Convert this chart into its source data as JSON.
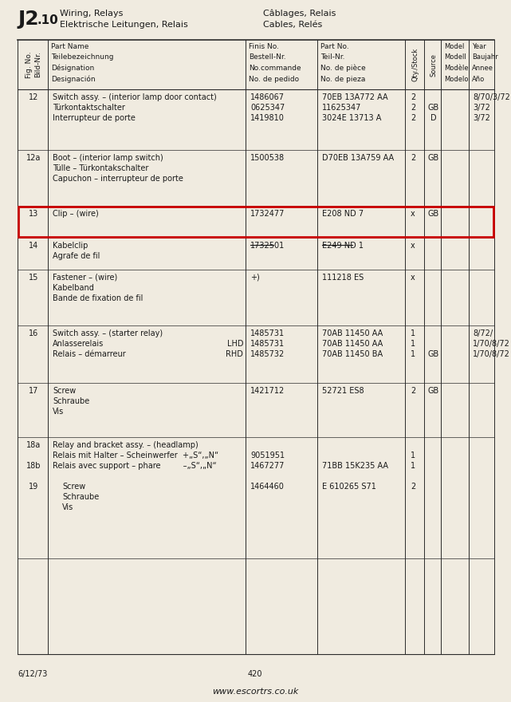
{
  "title_ref_j": "J2",
  "title_ref_dot": ".",
  "title_ref_10": "10",
  "title_line1": "Wiring, Relays",
  "title_line2": "Elektrische Leitungen, Relais",
  "title_fr1": "Câblages, Relais",
  "title_fr2": "Cables, Relés",
  "header_fig": [
    "Fig. No.",
    "Bild-Nr."
  ],
  "header_name": [
    "Part Name",
    "Teilebezeichnung",
    "Désignation",
    "Designación"
  ],
  "header_finis": [
    "Finis No.",
    "Bestell-Nr.",
    "No.commande",
    "No. de pedido"
  ],
  "header_part": [
    "Part No.",
    "Teil-Nr.",
    "No. de pièce",
    "No. de pieza"
  ],
  "header_qty": "Qty./Stock",
  "header_source": "Source",
  "header_model": [
    "Model",
    "Modell",
    "Modèle",
    "Modelo"
  ],
  "header_year": [
    "Year",
    "Baujahr",
    "Annee",
    "Año"
  ],
  "rows": [
    {
      "fig": "12",
      "name": [
        "Switch assy. – (interior lamp door contact)",
        "Türkontaktschalter",
        "Interrupteur de porte"
      ],
      "finis": [
        "1486067",
        "0625347",
        "1419810"
      ],
      "part": [
        "70EB 13A772 AA",
        "11625347",
        "3024E 13713 A"
      ],
      "qty": [
        "2",
        "2",
        "2"
      ],
      "source": [
        "",
        "GB",
        "D"
      ],
      "model": "",
      "year": [
        "8/70/3/72",
        "3/72",
        "3/72"
      ],
      "lhd_rhd": [],
      "highlight": false,
      "strikethrough": false
    },
    {
      "fig": "12a",
      "name": [
        "Boot – (interior lamp switch)",
        "Tülle – Türkontakschalter",
        "Capuchon – interrupteur de porte"
      ],
      "finis": [
        "1500538"
      ],
      "part": [
        "D70EB 13A759 AA"
      ],
      "qty": [
        "2"
      ],
      "source": [
        "GB"
      ],
      "model": "",
      "year": [],
      "lhd_rhd": [],
      "highlight": false,
      "strikethrough": false
    },
    {
      "fig": "13",
      "name": [
        "Clip – (wire)"
      ],
      "finis": [
        "1732477"
      ],
      "part": [
        "E208 ND 7"
      ],
      "qty": [
        "x"
      ],
      "source": [
        "GB"
      ],
      "model": "",
      "year": [],
      "lhd_rhd": [],
      "highlight": true,
      "strikethrough": false
    },
    {
      "fig": "14",
      "name": [
        "Kabelclip",
        "Agrafe de fil"
      ],
      "finis": [
        "1732501"
      ],
      "part": [
        "E249 ND 1"
      ],
      "qty": [
        "x"
      ],
      "source": [],
      "model": "",
      "year": [],
      "lhd_rhd": [],
      "highlight": false,
      "strikethrough": true
    },
    {
      "fig": "15",
      "name": [
        "Fastener – (wire)",
        "Kabelband",
        "Bande de fixation de fil"
      ],
      "finis": [
        "+)"
      ],
      "part": [
        "111218 ES"
      ],
      "qty": [
        "x"
      ],
      "source": [],
      "model": "",
      "year": [],
      "lhd_rhd": [],
      "highlight": false,
      "strikethrough": false
    },
    {
      "fig": "16",
      "name": [
        "Switch assy. – (starter relay)",
        "Anlasserelais",
        "Relais – démarreur"
      ],
      "finis": [
        "1485731",
        "1485731",
        "1485732"
      ],
      "part": [
        "70AB 11450 AA",
        "70AB 11450 AA",
        "70AB 11450 BA"
      ],
      "qty": [
        "1",
        "1",
        "1"
      ],
      "source": [
        "",
        "",
        "GB"
      ],
      "model": "",
      "year": [
        "8/72/",
        "1/70/8/72",
        "1/70/8/72"
      ],
      "lhd_rhd": [
        "",
        "LHD",
        "RHD"
      ],
      "highlight": false,
      "strikethrough": false
    },
    {
      "fig": "17",
      "name": [
        "Screw",
        "Schraube",
        "Vis"
      ],
      "finis": [
        "1421712"
      ],
      "part": [
        "52721 ES8"
      ],
      "qty": [
        "2"
      ],
      "source": [
        "GB"
      ],
      "model": "",
      "year": [],
      "lhd_rhd": [],
      "highlight": false,
      "strikethrough": false
    }
  ],
  "row_18a_name": "Relay and bracket assy. – (headlamp)",
  "row_18a_line2": "Relais mit Halter – Scheinwerfer  +„S“,„N“",
  "row_18b_label": "18b",
  "row_18b_line": "Relais avec support – phare         –„S“,„N“",
  "row_18a_finis": "9051951",
  "row_18b_finis": "1467277",
  "row_18b_part": "71BB 15K235 AA",
  "row_18a_qty": "1",
  "row_18b_qty": "1",
  "row_19_label": "19",
  "row_19_name": [
    "Screw",
    "Schraube",
    "Vis"
  ],
  "row_19_finis": "1464460",
  "row_19_part": "E 610265 S71",
  "row_19_qty": "2",
  "footer_left": "6/12/73",
  "footer_center": "420",
  "footer_url": "www.escortrs.co.uk",
  "bg_color": "#f0ebe0",
  "line_color": "#2a2a2a",
  "text_color": "#1a1a1a",
  "red_color": "#cc0000"
}
